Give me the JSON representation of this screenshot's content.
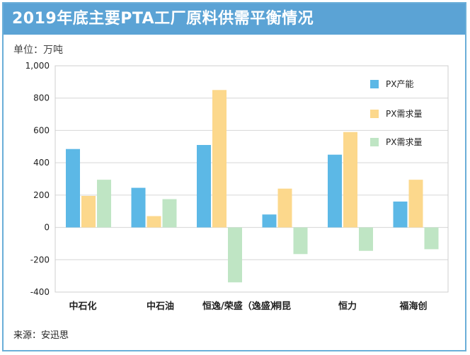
{
  "header": {
    "title": "2019年底主要PTA工厂原料供需平衡情况"
  },
  "unit_label": "单位：万吨",
  "source_label": "来源：安迅思",
  "colors": {
    "title_bg": "#5ba3d5",
    "frame": "#6aaed8"
  },
  "chart_data": {
    "type": "bar",
    "title": "2019年底主要PTA工厂原料供需平衡情况",
    "ylim": [
      -400,
      1000
    ],
    "ytick_step": 200,
    "yticks": [
      "1,000",
      "800",
      "600",
      "400",
      "200",
      "0",
      "-200",
      "-400"
    ],
    "grid": true,
    "legend_position": "right",
    "categories": [
      "中石化",
      "中石油",
      "恒逸/荣盛（逸盛）",
      "桐昆",
      "恒力",
      "福海创"
    ],
    "series": [
      {
        "name": "PX产能",
        "color": "#5cb8e6",
        "values": [
          485,
          245,
          510,
          80,
          450,
          160
        ]
      },
      {
        "name": "PX需求量",
        "color": "#fcd88c",
        "values": [
          195,
          70,
          850,
          240,
          590,
          295
        ]
      },
      {
        "name": "PX需求量",
        "color": "#bfe5c4",
        "values": [
          295,
          175,
          -340,
          -165,
          -145,
          -135
        ]
      }
    ]
  }
}
